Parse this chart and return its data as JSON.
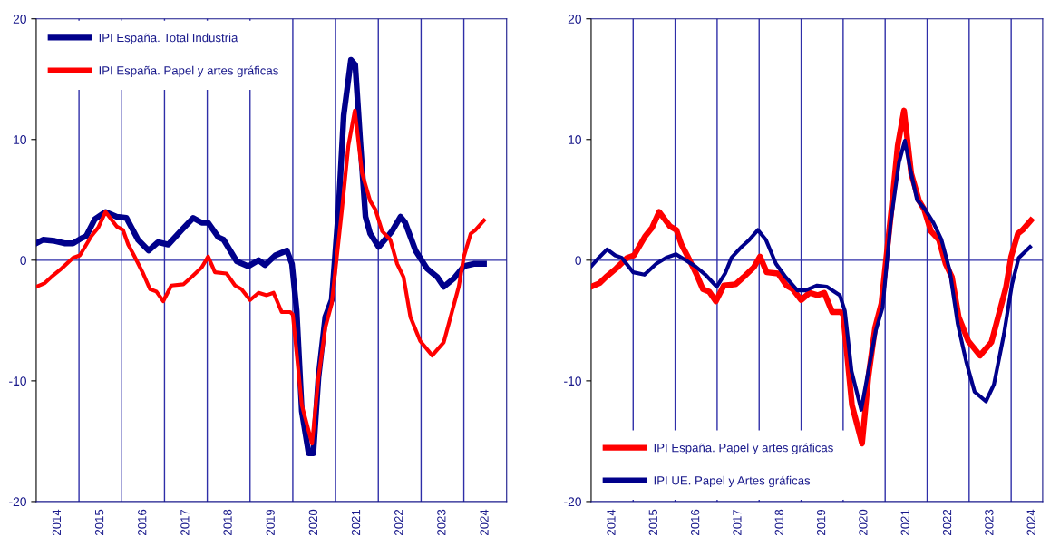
{
  "chart_data": [
    {
      "type": "line",
      "xlim": [
        2014,
        2025
      ],
      "ylim": [
        -20,
        20
      ],
      "yticks": [
        -20,
        -10,
        0,
        10,
        20
      ],
      "xticks": [
        {
          "value": 2014.5,
          "label": "2014"
        },
        {
          "value": 2015.5,
          "label": "2015"
        },
        {
          "value": 2016.5,
          "label": "2016"
        },
        {
          "value": 2017.5,
          "label": "2017"
        },
        {
          "value": 2018.5,
          "label": "2018"
        },
        {
          "value": 2019.5,
          "label": "2019"
        },
        {
          "value": 2020.5,
          "label": "2020"
        },
        {
          "value": 2021.5,
          "label": "2021"
        },
        {
          "value": 2022.5,
          "label": "2022"
        },
        {
          "value": 2023.5,
          "label": "2023"
        },
        {
          "value": 2024.5,
          "label": "2024"
        }
      ],
      "grid": false,
      "legend": "top left",
      "marker": "none",
      "line_style": "solid",
      "ref_lines": [
        {
          "axis": "y",
          "value": 0,
          "color": "#2e2ea8"
        },
        {
          "axis": "x",
          "value": 2015,
          "color": "#2e2ea8"
        },
        {
          "axis": "x",
          "value": 2016,
          "color": "#2e2ea8"
        },
        {
          "axis": "x",
          "value": 2017,
          "color": "#2e2ea8"
        },
        {
          "axis": "x",
          "value": 2018,
          "color": "#2e2ea8"
        },
        {
          "axis": "x",
          "value": 2019,
          "color": "#2e2ea8"
        },
        {
          "axis": "x",
          "value": 2020,
          "color": "#2e2ea8"
        },
        {
          "axis": "x",
          "value": 2021,
          "color": "#2e2ea8"
        },
        {
          "axis": "x",
          "value": 2022,
          "color": "#2e2ea8"
        },
        {
          "axis": "x",
          "value": 2023,
          "color": "#2e2ea8"
        },
        {
          "axis": "x",
          "value": 2024,
          "color": "#2e2ea8"
        }
      ],
      "series": [
        {
          "name": "IPI España. Total Industria",
          "color": "#00008b",
          "x": [
            2014.0,
            2014.16,
            2014.43,
            2014.66,
            2014.86,
            2015.05,
            2015.17,
            2015.37,
            2015.62,
            2015.88,
            2016.11,
            2016.38,
            2016.63,
            2016.85,
            2017.09,
            2017.4,
            2017.67,
            2017.87,
            2018.02,
            2018.26,
            2018.38,
            2018.69,
            2018.96,
            2019.2,
            2019.35,
            2019.59,
            2019.86,
            2019.98,
            2020.09,
            2020.21,
            2020.37,
            2020.48,
            2020.6,
            2020.76,
            2020.91,
            2021.07,
            2021.19,
            2021.36,
            2021.46,
            2021.58,
            2021.7,
            2021.81,
            2022.01,
            2022.32,
            2022.52,
            2022.63,
            2022.87,
            2023.14,
            2023.38,
            2023.53,
            2023.77,
            2024.0,
            2024.23,
            2024.47
          ],
          "values": [
            1.4,
            1.7,
            1.6,
            1.4,
            1.4,
            1.8,
            2.0,
            3.4,
            4.0,
            3.6,
            3.5,
            1.7,
            0.8,
            1.5,
            1.3,
            2.5,
            3.5,
            3.1,
            3.1,
            1.9,
            1.7,
            -0.1,
            -0.5,
            0,
            -0.4,
            0.4,
            0.8,
            -0.3,
            -4.2,
            -12.5,
            -16,
            -16,
            -9.7,
            -4.7,
            -3.3,
            4.2,
            12,
            16.6,
            16.2,
            9.7,
            3.6,
            2.2,
            1.1,
            2.4,
            3.6,
            3.1,
            0.8,
            -0.7,
            -1.4,
            -2.2,
            -1.5,
            -0.5,
            -0.3,
            -0.3
          ]
        },
        {
          "name": "IPI España. Papel y artes gráficas",
          "color": "#ff0000",
          "x": [
            2014.0,
            2014.2,
            2014.35,
            2014.59,
            2014.86,
            2015.02,
            2015.29,
            2015.45,
            2015.62,
            2015.88,
            2016.03,
            2016.15,
            2016.3,
            2016.5,
            2016.66,
            2016.81,
            2016.97,
            2017.16,
            2017.44,
            2017.63,
            2017.87,
            2018.02,
            2018.18,
            2018.45,
            2018.65,
            2018.8,
            2019.0,
            2019.2,
            2019.39,
            2019.55,
            2019.74,
            2019.94,
            2020.0,
            2020.21,
            2020.45,
            2020.6,
            2020.76,
            2020.91,
            2021.15,
            2021.3,
            2021.45,
            2021.62,
            2021.81,
            2021.93,
            2022.09,
            2022.28,
            2022.44,
            2022.59,
            2022.75,
            2022.98,
            2023.26,
            2023.53,
            2023.69,
            2023.88,
            2024.0,
            2024.16,
            2024.27,
            2024.47
          ],
          "values": [
            -2.2,
            -1.9,
            -1.4,
            -0.7,
            0.2,
            0.4,
            2.0,
            2.7,
            4.0,
            2.8,
            2.5,
            1.3,
            0.3,
            -1.1,
            -2.4,
            -2.6,
            -3.4,
            -2.1,
            -2.0,
            -1.4,
            -0.6,
            0.3,
            -1.0,
            -1.1,
            -2.1,
            -2.4,
            -3.3,
            -2.7,
            -2.9,
            -2.7,
            -4.3,
            -4.3,
            -4.5,
            -12,
            -15.2,
            -9.7,
            -5.6,
            -3.6,
            4.2,
            9.5,
            12.4,
            7.2,
            4.9,
            4.2,
            2.4,
            1.7,
            -0.3,
            -1.4,
            -4.7,
            -6.7,
            -7.9,
            -6.8,
            -4.7,
            -2.2,
            0.3,
            2.2,
            2.5,
            3.3
          ]
        }
      ]
    },
    {
      "type": "line",
      "xlim": [
        2014,
        2024.75
      ],
      "ylim": [
        -20,
        20
      ],
      "yticks": [
        -20,
        -10,
        0,
        10,
        20
      ],
      "xticks": [
        {
          "value": 2014.5,
          "label": "2014"
        },
        {
          "value": 2015.5,
          "label": "2015"
        },
        {
          "value": 2016.5,
          "label": "2016"
        },
        {
          "value": 2017.5,
          "label": "2017"
        },
        {
          "value": 2018.5,
          "label": "2018"
        },
        {
          "value": 2019.5,
          "label": "2019"
        },
        {
          "value": 2020.5,
          "label": "2020"
        },
        {
          "value": 2021.5,
          "label": "2021"
        },
        {
          "value": 2022.5,
          "label": "2022"
        },
        {
          "value": 2023.5,
          "label": "2023"
        },
        {
          "value": 2024.5,
          "label": "2024"
        }
      ],
      "grid": false,
      "legend": "bottom left",
      "marker": "none",
      "line_style": "solid",
      "ref_lines": [
        {
          "axis": "y",
          "value": 0,
          "color": "#2e2ea8"
        },
        {
          "axis": "x",
          "value": 2015,
          "color": "#2e2ea8"
        },
        {
          "axis": "x",
          "value": 2016,
          "color": "#2e2ea8"
        },
        {
          "axis": "x",
          "value": 2017,
          "color": "#2e2ea8"
        },
        {
          "axis": "x",
          "value": 2018,
          "color": "#2e2ea8"
        },
        {
          "axis": "x",
          "value": 2019,
          "color": "#2e2ea8"
        },
        {
          "axis": "x",
          "value": 2020,
          "color": "#2e2ea8"
        },
        {
          "axis": "x",
          "value": 2021,
          "color": "#2e2ea8"
        },
        {
          "axis": "x",
          "value": 2022,
          "color": "#2e2ea8"
        },
        {
          "axis": "x",
          "value": 2023,
          "color": "#2e2ea8"
        },
        {
          "axis": "x",
          "value": 2024,
          "color": "#2e2ea8"
        }
      ],
      "series": [
        {
          "name": "IPI España. Papel y artes gráficas",
          "color": "#ff0000",
          "x": [
            2014.0,
            2014.2,
            2014.35,
            2014.59,
            2014.86,
            2015.02,
            2015.29,
            2015.45,
            2015.62,
            2015.88,
            2016.03,
            2016.15,
            2016.3,
            2016.5,
            2016.66,
            2016.81,
            2016.97,
            2017.16,
            2017.44,
            2017.63,
            2017.87,
            2018.02,
            2018.18,
            2018.45,
            2018.65,
            2018.8,
            2019.0,
            2019.2,
            2019.39,
            2019.55,
            2019.74,
            2019.94,
            2020.0,
            2020.21,
            2020.45,
            2020.6,
            2020.76,
            2020.91,
            2021.15,
            2021.3,
            2021.45,
            2021.62,
            2021.81,
            2021.93,
            2022.09,
            2022.28,
            2022.44,
            2022.59,
            2022.75,
            2022.98,
            2023.26,
            2023.53,
            2023.69,
            2023.88,
            2024.0,
            2024.16,
            2024.27,
            2024.47
          ],
          "values": [
            -2.2,
            -1.9,
            -1.4,
            -0.7,
            0.2,
            0.4,
            2.0,
            2.7,
            4.0,
            2.8,
            2.5,
            1.3,
            0.3,
            -1.1,
            -2.4,
            -2.6,
            -3.4,
            -2.1,
            -2.0,
            -1.4,
            -0.6,
            0.3,
            -1.0,
            -1.1,
            -2.1,
            -2.4,
            -3.3,
            -2.7,
            -2.9,
            -2.7,
            -4.3,
            -4.3,
            -4.5,
            -12,
            -15.2,
            -9.7,
            -5.6,
            -3.6,
            4.2,
            9.5,
            12.4,
            7.2,
            4.9,
            4.2,
            2.4,
            1.7,
            -0.3,
            -1.4,
            -4.7,
            -6.7,
            -7.9,
            -6.8,
            -4.7,
            -2.2,
            0.3,
            2.2,
            2.5,
            3.3
          ]
        },
        {
          "name": "IPI UE. Papel y Artes gráficas",
          "color": "#00008b",
          "x": [
            2014.0,
            2014.18,
            2014.38,
            2014.57,
            2014.73,
            2015.0,
            2015.27,
            2015.55,
            2015.78,
            2016.02,
            2016.25,
            2016.48,
            2016.72,
            2016.99,
            2017.19,
            2017.34,
            2017.58,
            2017.77,
            2017.97,
            2018.16,
            2018.4,
            2018.63,
            2018.91,
            2019.1,
            2019.38,
            2019.61,
            2019.92,
            2020.04,
            2020.2,
            2020.43,
            2020.63,
            2020.78,
            2020.94,
            2021.13,
            2021.33,
            2021.47,
            2021.6,
            2021.76,
            2021.95,
            2022.15,
            2022.34,
            2022.54,
            2022.73,
            2022.93,
            2023.13,
            2023.4,
            2023.59,
            2023.83,
            2024.02,
            2024.18,
            2024.45
          ],
          "values": [
            -0.5,
            0.2,
            0.9,
            0.4,
            0.2,
            -1.0,
            -1.2,
            -0.3,
            0.2,
            0.5,
            0,
            -0.5,
            -1.2,
            -2.2,
            -1.1,
            0.2,
            1.1,
            1.7,
            2.5,
            1.7,
            -0.3,
            -1.4,
            -2.5,
            -2.5,
            -2.1,
            -2.2,
            -2.9,
            -4.2,
            -9.2,
            -12.4,
            -8.6,
            -5.8,
            -3.9,
            3.1,
            8.1,
            9.9,
            7.5,
            5.0,
            4.2,
            3.1,
            1.7,
            -0.9,
            -5.3,
            -8.4,
            -10.9,
            -11.7,
            -10.3,
            -6.1,
            -2.0,
            0.2,
            1.1
          ]
        }
      ]
    }
  ]
}
